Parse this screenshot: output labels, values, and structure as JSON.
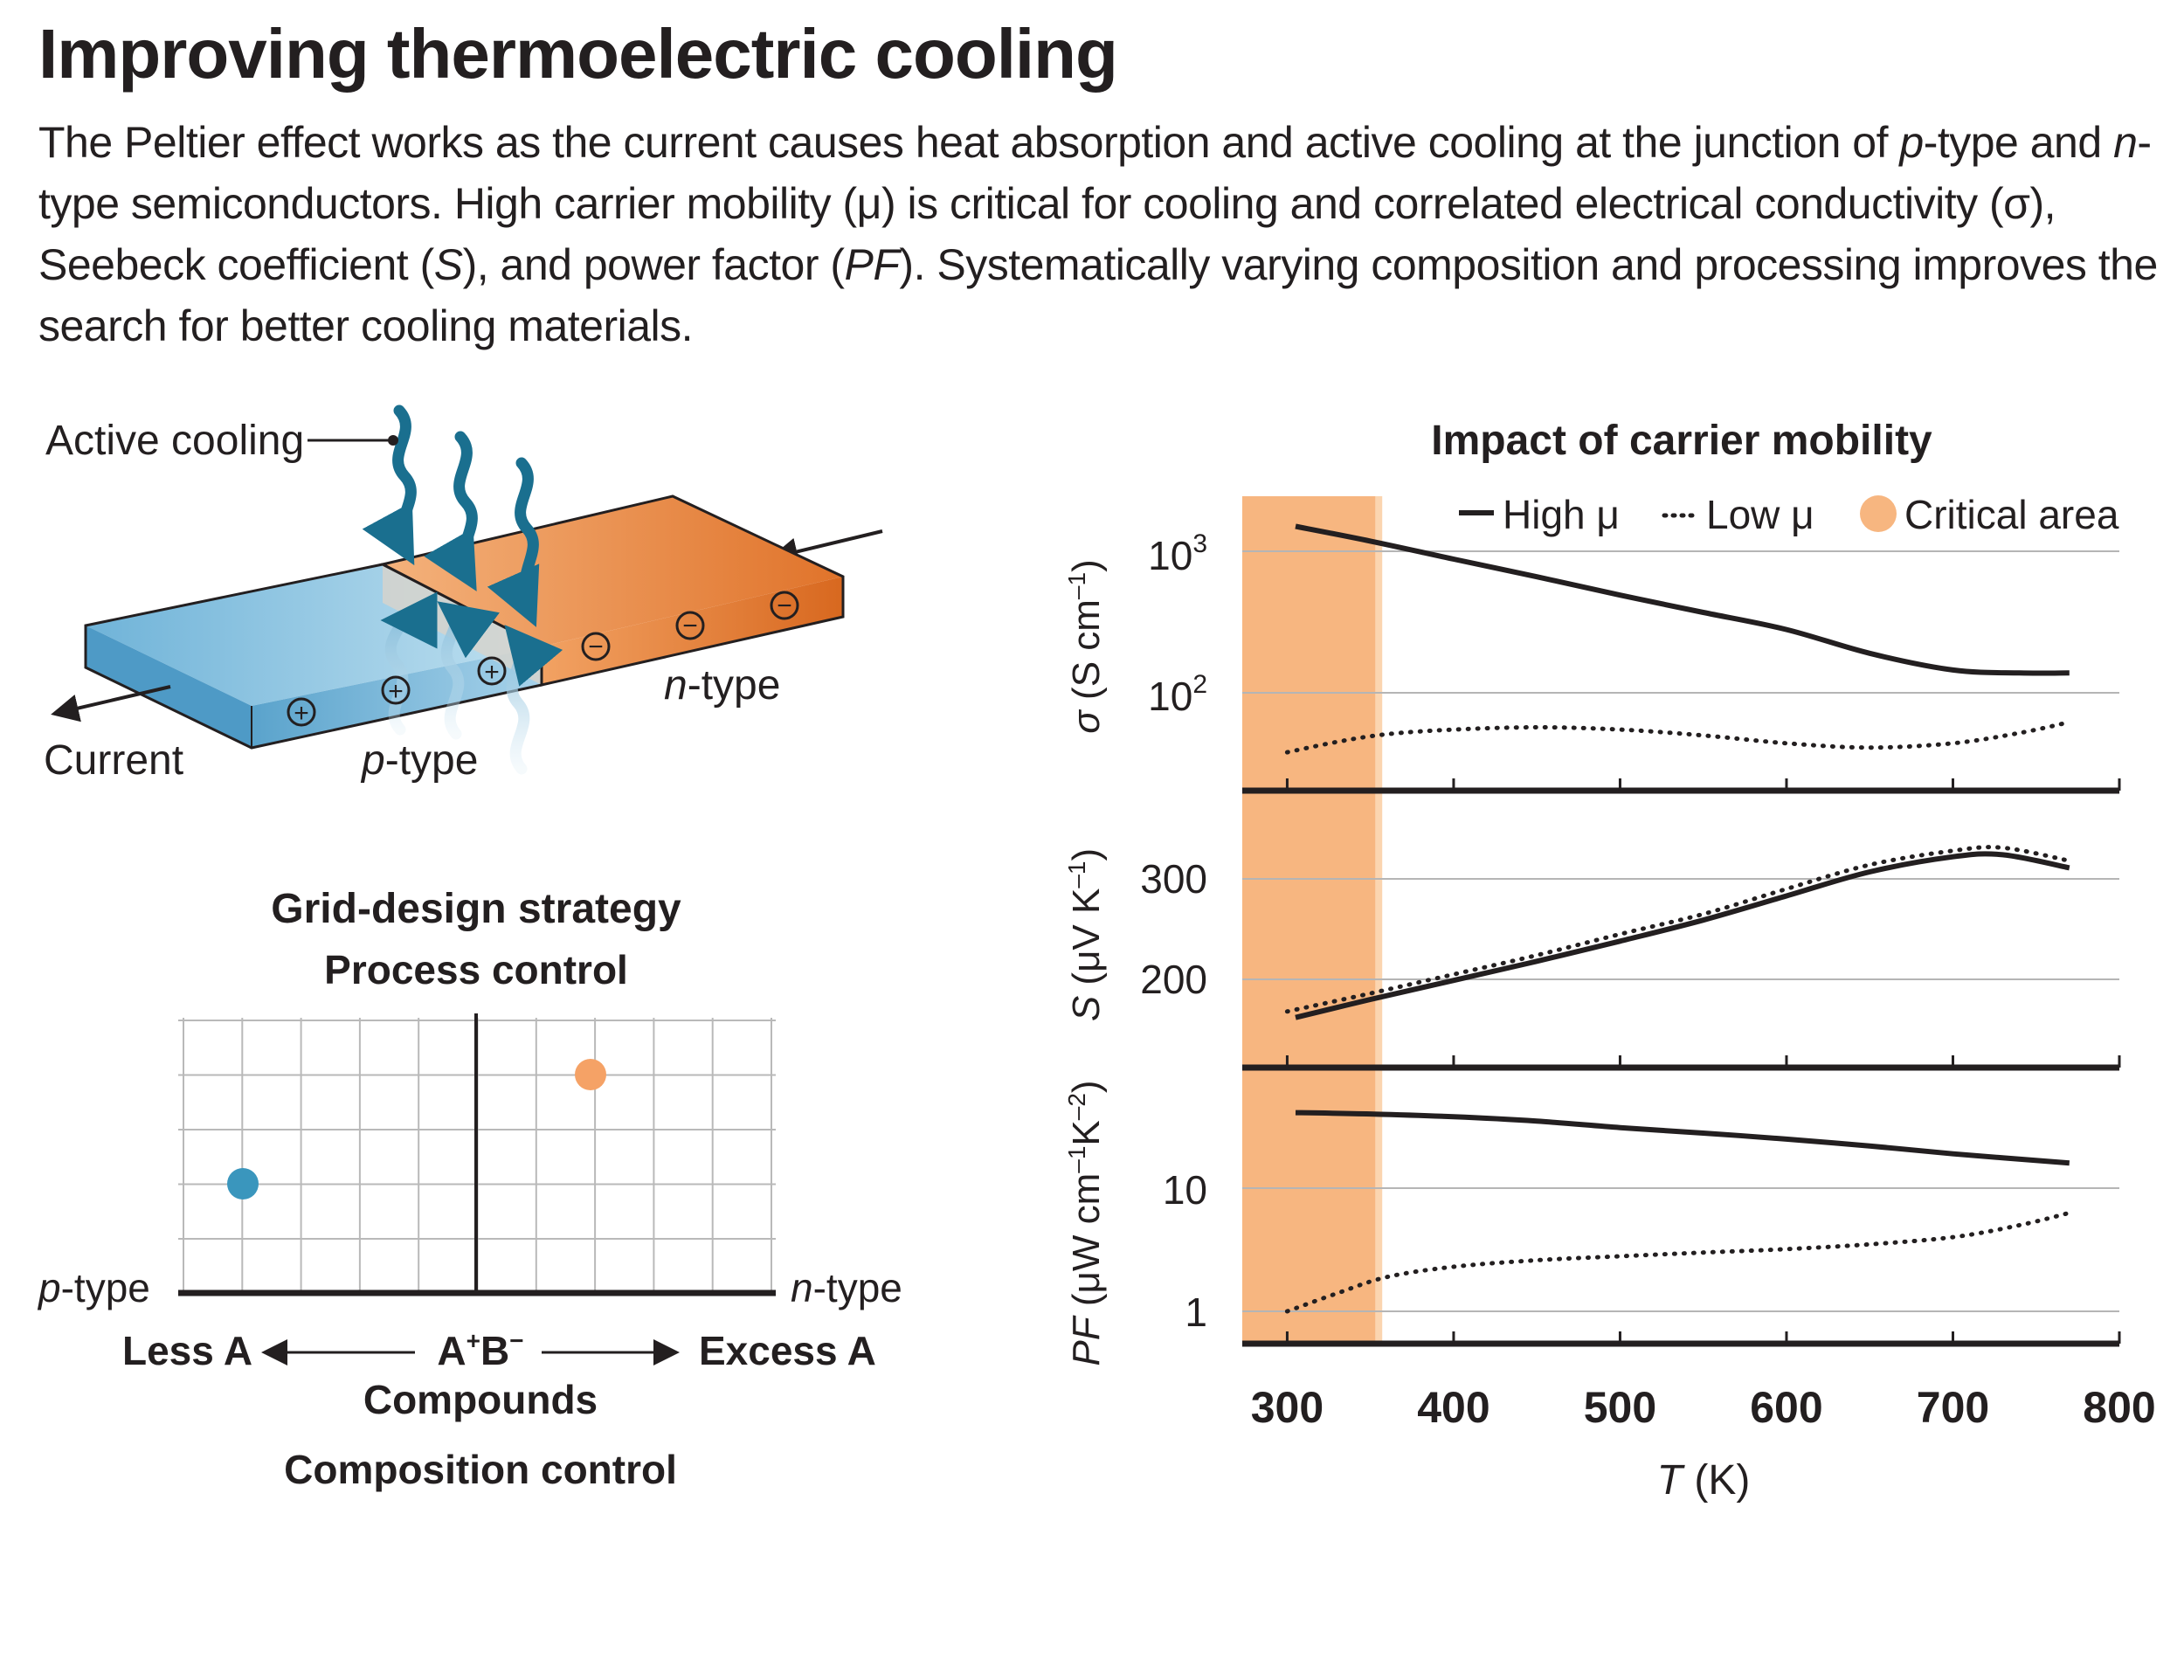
{
  "header": {
    "title": "Improving thermoelectric cooling",
    "description": {
      "s1": "The Peltier effect works as the current causes heat absorption and active cooling at the junction of ",
      "p": "p",
      "s2": "-type and ",
      "n": "n",
      "s3": "-type semiconductors. High carrier mobility (μ) is critical for cooling and correlated electrical conductivity (σ), Seebeck coefficient (",
      "S": "S",
      "s4": "), and power factor (",
      "PF": "PF",
      "s5": "). Systematically varying composition and processing improves the search for better cooling materials."
    }
  },
  "device": {
    "active_cooling": "Active cooling",
    "current": "Current",
    "p_letter": "p",
    "n_letter": "n",
    "type_suffix": "-type",
    "plus": "+",
    "minus": "−",
    "colors": {
      "p_material": "#8fc3e0",
      "n_material": "#e8843c",
      "arrows": "#1a6f8f"
    }
  },
  "grid": {
    "title": "Grid-design strategy",
    "y_label": "Process control",
    "left_letter": "p",
    "right_letter": "n",
    "type_suffix": "-type",
    "less": "Less A",
    "excess": "Excess A",
    "compound": {
      "a": "A",
      "plus": "+",
      "b": "B",
      "minus": "−"
    },
    "x_label1": "Compounds",
    "x_label2": "Composition control",
    "points": [
      {
        "name": "p-type point",
        "color": "#3a96bd"
      },
      {
        "name": "n-type point",
        "color": "#f5a266"
      }
    ]
  },
  "chart_data": {
    "type": "line",
    "title": "Impact of carrier mobility",
    "legend": {
      "placement": "top-right",
      "high": "High μ",
      "low": "Low μ",
      "critical": "Critical area",
      "critical_color": "#f7b680"
    },
    "critical_range": [
      300,
      355
    ],
    "xlabel_var": "T",
    "xlabel_unit": " (K)",
    "xlim": [
      273,
      800
    ],
    "x_ticks": [
      "300",
      "400",
      "500",
      "600",
      "700",
      "800"
    ],
    "panels": [
      {
        "name": "sigma",
        "ylabel": {
          "var": "σ",
          "rest": " (S cm",
          "sup": "–1",
          "end": ")"
        },
        "scale": "log",
        "yticks": [
          {
            "base": "10",
            "exp": "3"
          },
          {
            "base": "10",
            "exp": "2"
          }
        ],
        "series": [
          {
            "style": "solid",
            "x": [
              305,
              350,
              400,
              450,
              500,
              550,
              600,
              650,
              700,
              740,
              770
            ],
            "y": [
              1500,
              1180,
              880,
              660,
              490,
              370,
              280,
              190,
              145,
              138,
              138
            ]
          },
          {
            "style": "dotted",
            "x": [
              300,
              330,
              360,
              400,
              450,
              500,
              550,
              600,
              650,
              700,
              740,
              770
            ],
            "y": [
              38,
              45,
              51,
              55,
              57,
              55,
              50,
              44,
              41,
              44,
              52,
              62
            ]
          }
        ]
      },
      {
        "name": "seebeck",
        "ylabel": {
          "var": "S",
          "rest": " (μV K",
          "sup": "–1",
          "end": ")"
        },
        "scale": "linear",
        "yticks": [
          "300",
          "200"
        ],
        "series": [
          {
            "style": "solid",
            "x": [
              305,
              350,
              400,
              450,
              500,
              550,
              600,
              650,
              700,
              730,
              770
            ],
            "y": [
              162,
              180,
              199,
              218,
              238,
              259,
              283,
              307,
              322,
              324,
              311
            ]
          },
          {
            "style": "dotted",
            "x": [
              300,
              350,
              400,
              450,
              500,
              550,
              600,
              650,
              700,
              730,
              770
            ],
            "y": [
              168,
              186,
              205,
              224,
              245,
              265,
              290,
              314,
              328,
              331,
              318
            ]
          }
        ]
      },
      {
        "name": "power-factor",
        "ylabel": {
          "var": "PF",
          "rest": " (μW cm",
          "sup1": "–1",
          "mid": "K",
          "sup2": "–2",
          "end": ")"
        },
        "scale": "log",
        "yticks": [
          "10",
          "1"
        ],
        "series": [
          {
            "style": "solid",
            "x": [
              305,
              350,
              400,
              450,
              500,
              550,
              600,
              650,
              700,
              770
            ],
            "y": [
              41,
              40,
              38,
              35,
              31,
              28,
              25,
              22,
              19,
              16
            ]
          },
          {
            "style": "dotted",
            "x": [
              300,
              330,
              360,
              400,
              450,
              500,
              550,
              600,
              650,
              700,
              740,
              770
            ],
            "y": [
              1.0,
              1.4,
              1.9,
              2.3,
              2.6,
              2.8,
              3.0,
              3.2,
              3.5,
              4.0,
              5.0,
              6.3
            ]
          }
        ]
      }
    ]
  }
}
